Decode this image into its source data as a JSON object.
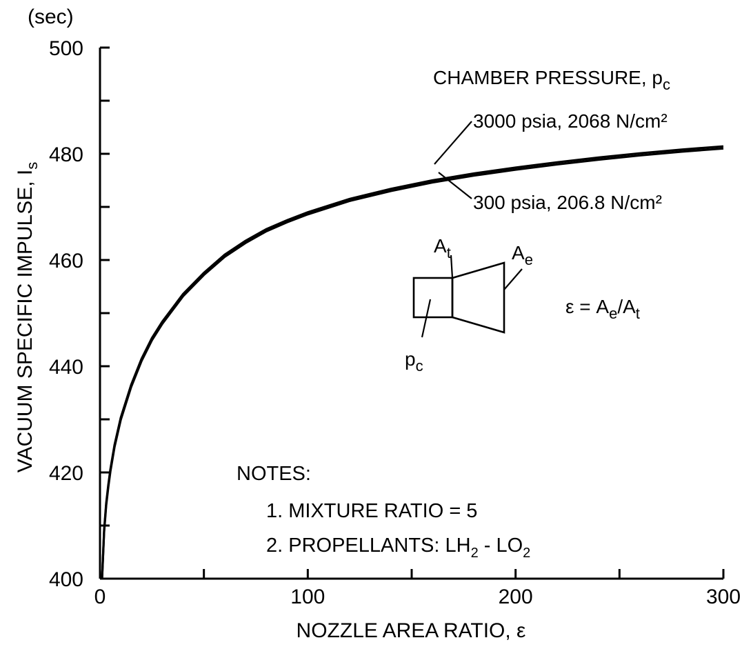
{
  "chart_data": {
    "type": "line",
    "ylabel": "VACUUM SPECIFIC IMPULSE, I",
    "ylabel_sub": "s",
    "yunit": "(sec)",
    "xlabel": "NOZZLE AREA RATIO, ε",
    "xlim": [
      0,
      300
    ],
    "ylim": [
      400,
      500
    ],
    "xticks": [
      0,
      100,
      200,
      300
    ],
    "yticks": [
      400,
      420,
      440,
      460,
      480,
      500
    ],
    "grid": false,
    "legend_title": "CHAMBER PRESSURE, p",
    "legend_title_sub": "c",
    "series": [
      {
        "name": "3000 psia, 2068 N/cm²",
        "x": [
          1,
          2,
          3,
          4,
          5,
          7,
          10,
          15,
          20,
          25,
          30,
          40,
          50,
          60,
          70,
          80,
          90,
          100,
          120,
          140,
          160,
          180,
          200,
          220,
          240,
          260,
          280,
          300
        ],
        "y": [
          400,
          409.2,
          414.2,
          417.7,
          420.6,
          425.2,
          430.3,
          436.5,
          441.4,
          445.3,
          448.4,
          453.6,
          457.6,
          461.0,
          463.6,
          465.8,
          467.5,
          469.0,
          471.5,
          473.4,
          475.0,
          476.3,
          477.4,
          478.4,
          479.3,
          480.1,
          480.8,
          481.4
        ]
      },
      {
        "name": "300 psia, 206.8 N/cm²",
        "x": [
          1,
          2,
          3,
          4,
          5,
          7,
          10,
          15,
          20,
          25,
          30,
          40,
          50,
          60,
          70,
          80,
          90,
          100,
          120,
          140,
          160,
          180,
          200,
          220,
          240,
          260,
          280,
          300
        ],
        "y": [
          400,
          408.8,
          413.8,
          417.3,
          420.2,
          424.8,
          429.9,
          436.1,
          441.0,
          444.9,
          448.0,
          453.2,
          457.2,
          460.6,
          463.2,
          465.4,
          467.1,
          468.6,
          471.1,
          473.0,
          474.6,
          475.9,
          477.0,
          478.0,
          478.9,
          479.7,
          480.4,
          481.0
        ]
      }
    ],
    "diagram": {
      "at": "A",
      "at_sub": "t",
      "ae": "A",
      "ae_sub": "e",
      "pc": "p",
      "pc_sub": "c",
      "eq_lhs": "ε = A",
      "eq_e": "e",
      "eq_slash": "/",
      "eq_a": "A",
      "eq_t": "t"
    },
    "notes": {
      "heading": "NOTES:",
      "items": [
        "1.  MIXTURE RATIO = 5",
        "2.  PROPELLANTS:  LH",
        "2",
        " - LO",
        "2"
      ]
    }
  }
}
